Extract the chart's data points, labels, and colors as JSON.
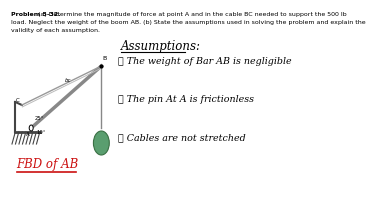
{
  "background_color": "#ffffff",
  "problem_text_bold": "Problem 5-32.",
  "problem_text_rest_line1": " (a) Determine the magnitude of force at point A and in the cable BC needed to support the 500 lb",
  "problem_text_line2": "load. Neglect the weight of the boom AB. (b) State the assumptions used in solving the problem and explain the",
  "problem_text_line3": "validity of each assumption.",
  "assumptions_title": "Assumptions:",
  "assumption1": "① The weight of Bar AB is negligible",
  "assumption2": "② The pin At A is frictionless",
  "assumption3": "③ Cables are not stretched",
  "fbd_label": "FBD of AB",
  "ball_color": "#5a9e6f",
  "diagram_color": "#888888",
  "line_color": "#555555",
  "angle_25": "25°",
  "angle_10": "10°",
  "label_B": "B",
  "label_bc": "bc"
}
